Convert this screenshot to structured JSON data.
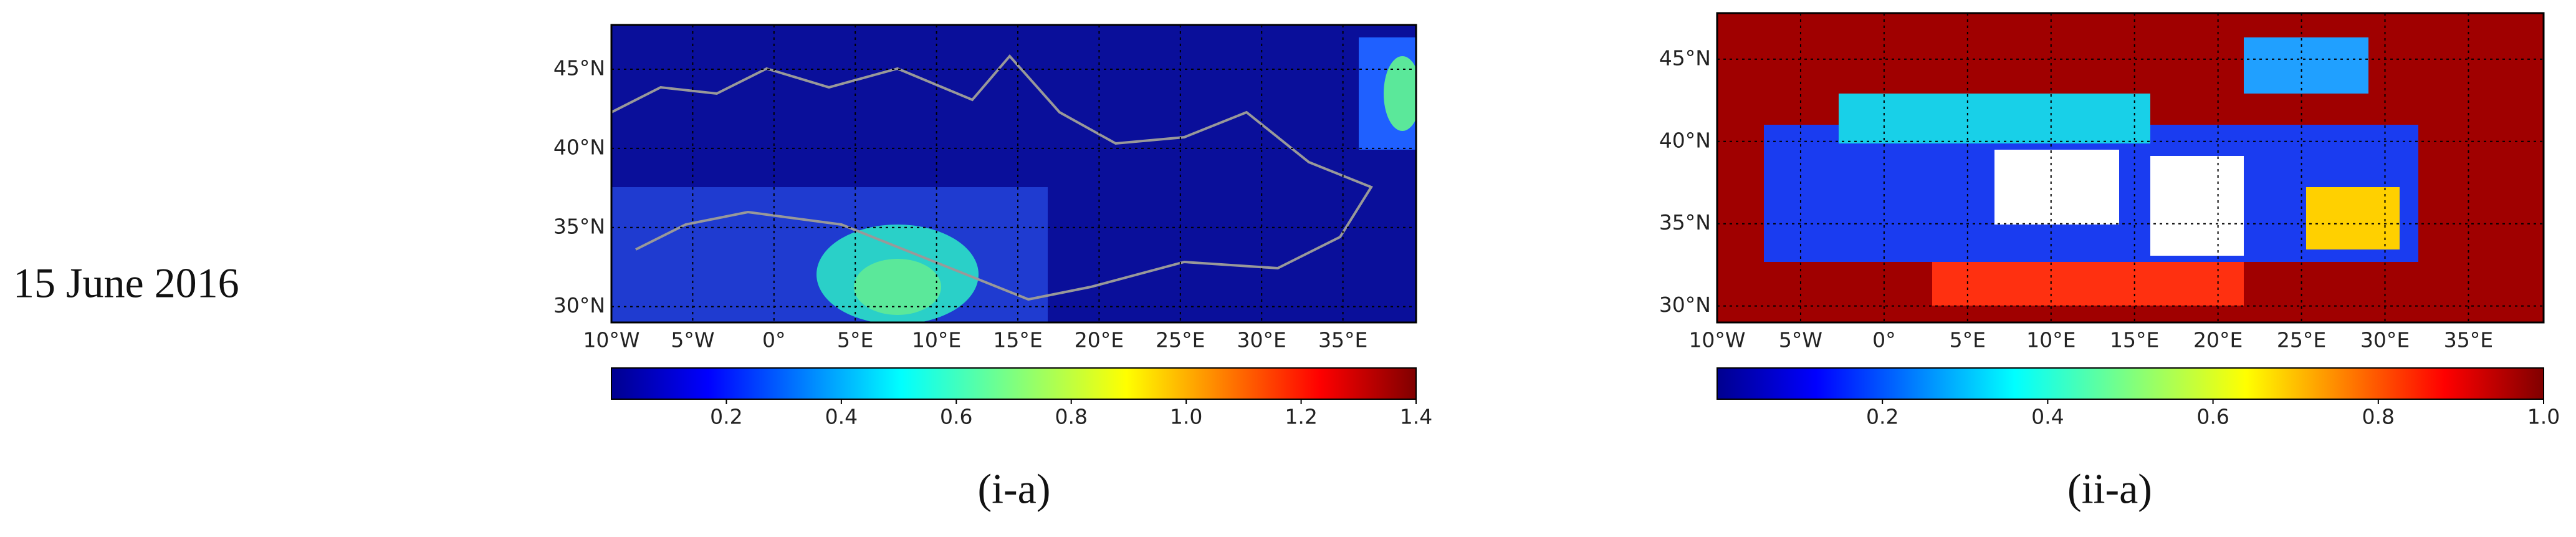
{
  "date_label": "15 June 2016",
  "chart_data": [
    {
      "type": "map",
      "panel_label": "(i-a)",
      "xlim": [
        -10,
        39.5
      ],
      "ylim": [
        29,
        47.8
      ],
      "xticks": [
        {
          "value": -10,
          "label": "10°W"
        },
        {
          "value": -5,
          "label": "5°W"
        },
        {
          "value": 0,
          "label": "0°"
        },
        {
          "value": 5,
          "label": "5°E"
        },
        {
          "value": 10,
          "label": "10°E"
        },
        {
          "value": 15,
          "label": "15°E"
        },
        {
          "value": 20,
          "label": "20°E"
        },
        {
          "value": 25,
          "label": "25°E"
        },
        {
          "value": 30,
          "label": "30°E"
        },
        {
          "value": 35,
          "label": "35°E"
        }
      ],
      "yticks": [
        {
          "value": 30,
          "label": "30°N"
        },
        {
          "value": 35,
          "label": "35°N"
        },
        {
          "value": 40,
          "label": "40°N"
        },
        {
          "value": 45,
          "label": "45°N"
        }
      ],
      "clim": [
        0,
        1.4
      ],
      "cticks": [
        0.2,
        0.4,
        0.6,
        0.8,
        {
          "value": 1.0,
          "label": "1.0"
        },
        1.2,
        1.4
      ]
    },
    {
      "type": "map",
      "panel_label": "(ii-a)",
      "xlim": [
        -10,
        39.5
      ],
      "ylim": [
        29,
        47.8
      ],
      "xticks": [
        {
          "value": -10,
          "label": "10°W"
        },
        {
          "value": -5,
          "label": "5°W"
        },
        {
          "value": 0,
          "label": "0°"
        },
        {
          "value": 5,
          "label": "5°E"
        },
        {
          "value": 10,
          "label": "10°E"
        },
        {
          "value": 15,
          "label": "15°E"
        },
        {
          "value": 20,
          "label": "20°E"
        },
        {
          "value": 25,
          "label": "25°E"
        },
        {
          "value": 30,
          "label": "30°E"
        },
        {
          "value": 35,
          "label": "35°E"
        }
      ],
      "yticks": [
        {
          "value": 30,
          "label": "30°N"
        },
        {
          "value": 35,
          "label": "35°N"
        },
        {
          "value": 40,
          "label": "40°N"
        },
        {
          "value": 45,
          "label": "45°N"
        }
      ],
      "clim": [
        0,
        1.0
      ],
      "cticks": [
        0.2,
        0.4,
        0.6,
        0.8,
        {
          "value": 1.0,
          "label": "1.0"
        }
      ]
    }
  ]
}
